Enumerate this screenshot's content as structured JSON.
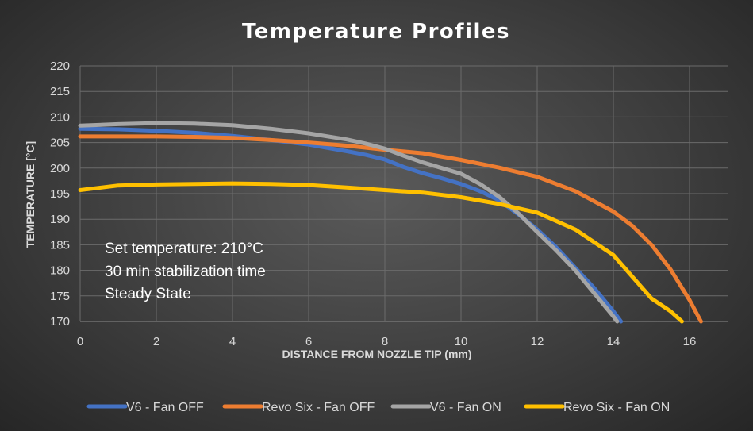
{
  "chart_data": {
    "type": "line",
    "title": "Temperature Profiles",
    "xlabel": "DISTANCE FROM NOZZLE TIP (mm)",
    "ylabel": "TEMPERATURE [°C]",
    "xlim": [
      0,
      17
    ],
    "ylim": [
      170,
      220
    ],
    "x_ticks": [
      0,
      2,
      4,
      6,
      8,
      10,
      12,
      14,
      16
    ],
    "y_ticks": [
      170,
      175,
      180,
      185,
      190,
      195,
      200,
      205,
      210,
      215,
      220
    ],
    "grid": true,
    "legend_position": "bottom",
    "annotations": [
      "Set temperature: 210°C",
      "30 min stabilization time",
      "Steady State"
    ],
    "series": [
      {
        "name": "V6 - Fan OFF",
        "color": "#4472c4",
        "x": [
          0,
          1,
          2,
          3,
          4,
          5,
          6,
          7,
          7.5,
          8,
          8.5,
          9,
          9.5,
          10,
          10.5,
          11,
          11.5,
          12,
          12.5,
          13,
          13.5,
          14,
          14.2
        ],
        "y": [
          207.7,
          207.6,
          207.3,
          206.9,
          206.3,
          205.5,
          204.6,
          203.3,
          202.6,
          201.7,
          200.2,
          199.0,
          198.0,
          196.9,
          195.5,
          193.7,
          191.0,
          188.0,
          184.5,
          180.5,
          176.5,
          172.0,
          170.0
        ]
      },
      {
        "name": "Revo Six - Fan OFF",
        "color": "#ed7d31",
        "x": [
          0,
          1,
          2,
          3,
          4,
          5,
          6,
          7,
          8,
          9,
          10,
          11,
          12,
          13,
          14,
          14.5,
          15,
          15.5,
          16,
          16.3
        ],
        "y": [
          206.2,
          206.2,
          206.2,
          206.1,
          205.9,
          205.5,
          205.0,
          204.4,
          203.6,
          202.9,
          201.6,
          200.1,
          198.3,
          195.5,
          191.5,
          188.7,
          185.0,
          180.2,
          174.2,
          170.0
        ]
      },
      {
        "name": "V6 - Fan ON",
        "color": "#a5a5a5",
        "x": [
          0,
          1,
          2,
          3,
          4,
          5,
          6,
          7,
          7.5,
          8,
          8.5,
          9,
          9.5,
          10,
          10.5,
          11,
          11.5,
          12,
          12.5,
          13,
          13.5,
          14,
          14.1
        ],
        "y": [
          208.3,
          208.6,
          208.8,
          208.7,
          208.4,
          207.7,
          206.8,
          205.6,
          204.8,
          203.8,
          202.4,
          201.1,
          200.0,
          198.9,
          196.9,
          194.4,
          191.2,
          187.5,
          183.9,
          180.0,
          175.5,
          171.0,
          170.0
        ]
      },
      {
        "name": "Revo Six - Fan ON",
        "color": "#ffc000",
        "x": [
          0,
          1,
          2,
          3,
          4,
          5,
          6,
          7,
          8,
          9,
          10,
          11,
          12,
          13,
          14,
          15,
          15.5,
          15.8
        ],
        "y": [
          195.7,
          196.6,
          196.8,
          196.9,
          197.0,
          196.9,
          196.7,
          196.2,
          195.7,
          195.2,
          194.3,
          193.0,
          191.3,
          188.0,
          183.0,
          174.5,
          172.0,
          170.0
        ]
      }
    ]
  }
}
